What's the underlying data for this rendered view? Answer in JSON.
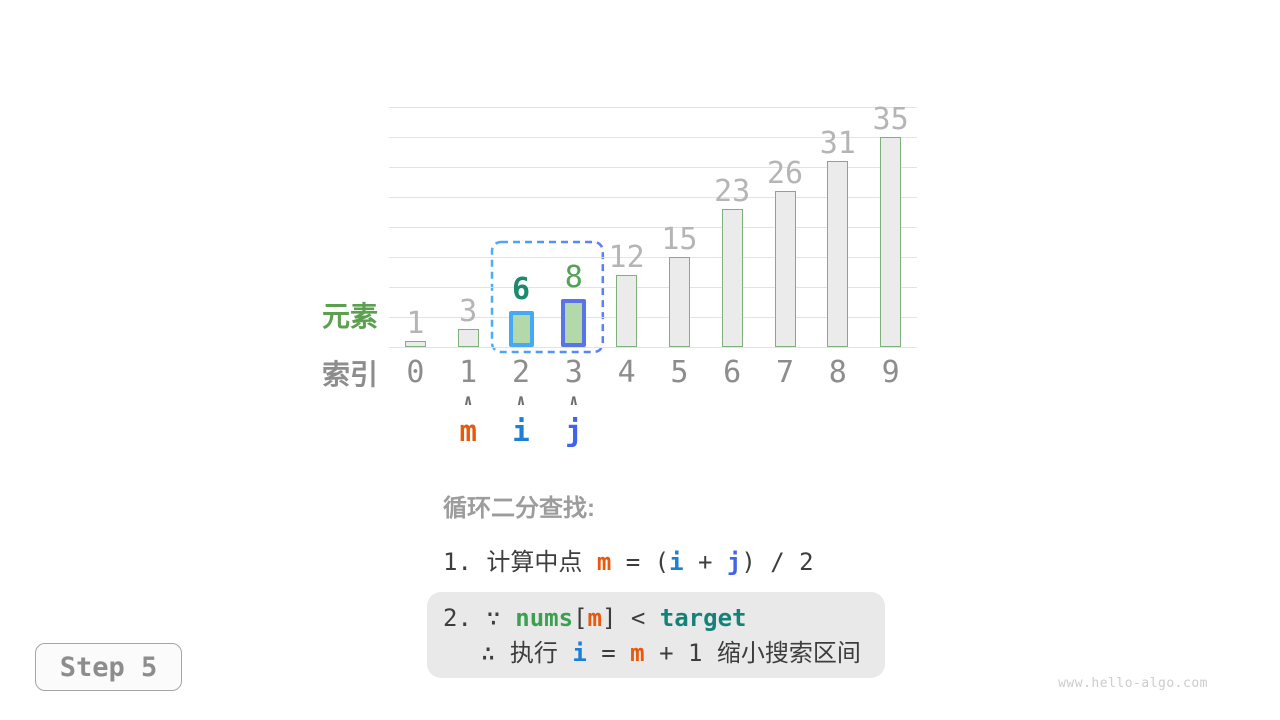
{
  "colors": {
    "grid": "#e3e3e3",
    "bar_fill": "#ebebeb",
    "bar_border": "#7db07a",
    "value_label": "#b5b5b5",
    "index_label": "#8d8d8d",
    "axis_green": "#5aa04f",
    "caret": "#6f6f6f",
    "pointer_m": "#e8590c",
    "pointer_i": "#1c7ed6",
    "pointer_j": "#4263eb",
    "code_green": "#3ca050",
    "code_teal": "#148278",
    "text_dark": "#3d3d3d",
    "text_gray": "#9c9c9c",
    "box_bg": "#e9e9e9",
    "badge_border": "#a5a5a5",
    "badge_bg": "#fbfbfb",
    "badge_text": "#8d8d8d",
    "watermark": "#cccccc"
  },
  "chart_data": {
    "type": "bar",
    "title": "",
    "xlabel": "索引",
    "ylabel": "元素",
    "categories": [
      "0",
      "1",
      "2",
      "3",
      "4",
      "5",
      "6",
      "7",
      "8",
      "9"
    ],
    "values": [
      1,
      3,
      6,
      8,
      12,
      15,
      23,
      26,
      31,
      35
    ],
    "ylim": [
      0,
      40
    ],
    "grid_step": 5,
    "grid": "horizontal lines, no axis spines",
    "legend": "none",
    "bar_style": {
      "fill": "#ebebeb",
      "border": "#7db07a"
    },
    "highlighted_bars": [
      {
        "index": 2,
        "fill": "#b3d8aa",
        "border": "#45a9f5",
        "label_color": "#1d8a70",
        "label_bold": true
      },
      {
        "index": 3,
        "fill": "#b3d8aa",
        "border": "#5b73e8",
        "label_color": "#55a155",
        "label_bold": false
      }
    ],
    "selection_range": {
      "from": 2,
      "to": 3,
      "gradient": [
        "#4dabf7",
        "#5c7cfa"
      ]
    }
  },
  "pointers": [
    {
      "label": "m",
      "index": 1,
      "color": "#e8590c"
    },
    {
      "label": "i",
      "index": 2,
      "color": "#1c7ed6"
    },
    {
      "label": "j",
      "index": 3,
      "color": "#4263eb"
    }
  ],
  "caret_glyph": "∧",
  "explanation": {
    "title": "循环二分查找:",
    "step1": [
      {
        "t": "1. ",
        "cls": "dark"
      },
      {
        "t": "计算中点 ",
        "cls": "dark"
      },
      {
        "t": "m",
        "cls": "m"
      },
      {
        "t": " = (",
        "cls": "dark"
      },
      {
        "t": "i",
        "cls": "i"
      },
      {
        "t": " + ",
        "cls": "dark"
      },
      {
        "t": "j",
        "cls": "j"
      },
      {
        "t": ") / 2",
        "cls": "dark"
      }
    ],
    "step2_line1": [
      {
        "t": "2. ",
        "cls": "dark"
      },
      {
        "t": "∵ ",
        "cls": "dark"
      },
      {
        "t": "nums",
        "cls": "nums"
      },
      {
        "t": "[",
        "cls": "dark"
      },
      {
        "t": "m",
        "cls": "m"
      },
      {
        "t": "] < ",
        "cls": "dark"
      },
      {
        "t": "target",
        "cls": "target"
      }
    ],
    "step2_line2": [
      {
        "t": "∴ 执行 ",
        "cls": "dark"
      },
      {
        "t": "i",
        "cls": "i"
      },
      {
        "t": " = ",
        "cls": "dark"
      },
      {
        "t": "m",
        "cls": "m"
      },
      {
        "t": " + 1 缩小搜索区间",
        "cls": "dark"
      }
    ]
  },
  "step_badge": "Step 5",
  "watermark": "www.hello-algo.com"
}
